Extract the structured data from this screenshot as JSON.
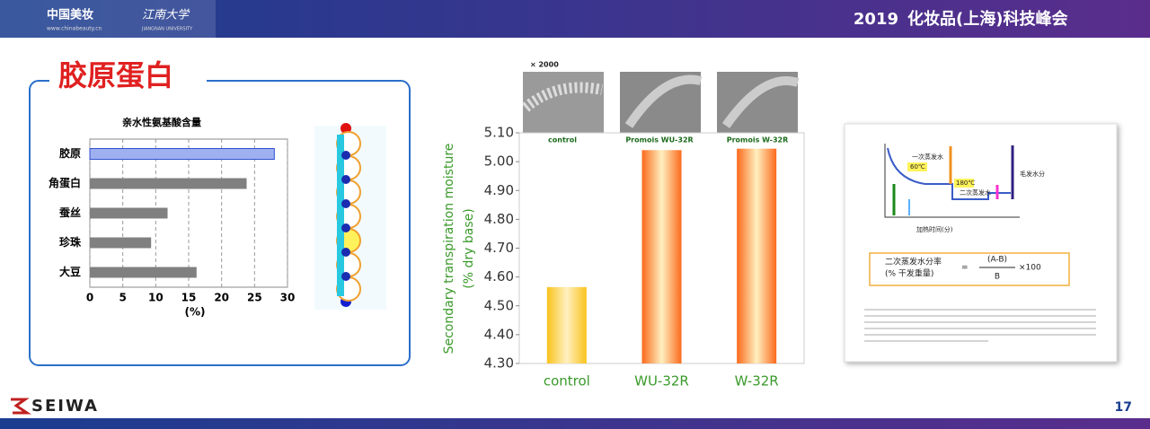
{
  "header": {
    "brand": "中国美妆",
    "brand_url": "www.chinabeauty.cn",
    "university": "江南大学",
    "university_en": "JIANGNAN UNIVERSITY",
    "year": "2019",
    "event": "化妆品(上海)科技峰会"
  },
  "title": "胶原蛋白",
  "chart_data": [
    {
      "type": "hbar",
      "title": "亲水性氨基酸含量",
      "categories": [
        "胶原",
        "角蛋白",
        "蚕丝",
        "珍珠",
        "大豆"
      ],
      "values": [
        28,
        23.8,
        11.8,
        9.3,
        16.2
      ],
      "colors": [
        "#9fb0f0",
        "#808080",
        "#808080",
        "#808080",
        "#808080"
      ],
      "xlim": [
        0,
        30
      ],
      "xticks": [
        0,
        5,
        10,
        15,
        20,
        25,
        30
      ],
      "x_label": "(%)",
      "grid": true
    },
    {
      "type": "bar",
      "y_label": [
        "Secondary transpiration moisture",
        "(% dry base)"
      ],
      "categories": [
        "control",
        "WU-32R",
        "W-32R"
      ],
      "values": [
        4.565,
        5.04,
        5.045
      ],
      "colors": [
        "#f9c31c",
        "#fb6a1c",
        "#fb6a1c"
      ],
      "ylim": [
        4.3,
        5.1
      ],
      "yticks": [
        {
          "value": 4.3,
          "label": "4.30"
        },
        {
          "value": 4.4,
          "label": "4.40"
        },
        {
          "value": 4.5,
          "label": "4.50"
        },
        {
          "value": 4.6,
          "label": "4.60"
        },
        {
          "value": 4.7,
          "label": "4.70"
        },
        {
          "value": 4.8,
          "label": "4.80"
        },
        {
          "value": 4.9,
          "label": "4.90"
        },
        {
          "value": 5.0,
          "label": "5.00"
        },
        {
          "value": 5.1,
          "label": "5.10"
        }
      ],
      "image_captions": [
        "× 2000",
        "control",
        "Promois WU-32R",
        "Promois W-32R"
      ]
    }
  ],
  "diagram": {
    "labels": [
      "一次蒸发水",
      "60℃",
      "180℃",
      "二次蒸发水",
      "毛发水分",
      "加热时间(分)"
    ],
    "formula": {
      "name": "二次蒸发水分率",
      "unit": "(% 干发重量)",
      "numerator": "(A-B)",
      "denominator": "B",
      "factor": "×100"
    }
  },
  "footer": {
    "company": "SEIWA",
    "page": "17"
  }
}
